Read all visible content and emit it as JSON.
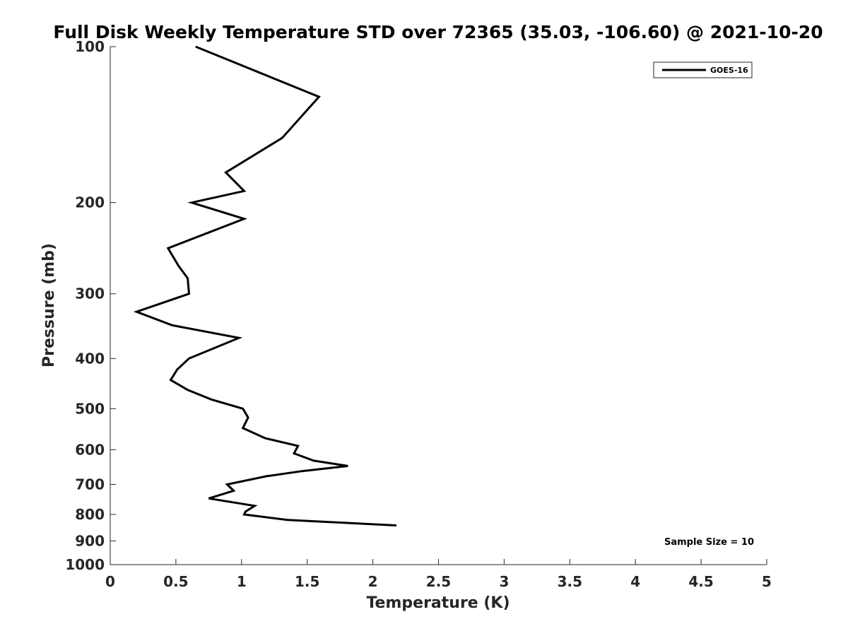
{
  "chart_data": {
    "type": "line",
    "title": "Full Disk Weekly Temperature STD over 72365 (35.03, -106.60) @ 2021-10-20",
    "xlabel": "Temperature (K)",
    "ylabel": "Pressure (mb)",
    "xlim": [
      0,
      5
    ],
    "ylim": [
      1000,
      100
    ],
    "yscale": "log",
    "y_reversed": true,
    "xticks": [
      0,
      0.5,
      1,
      1.5,
      2,
      2.5,
      3,
      3.5,
      4,
      4.5,
      5
    ],
    "xtick_labels": [
      "0",
      "0.5",
      "1",
      "1.5",
      "2",
      "2.5",
      "3",
      "3.5",
      "4",
      "4.5",
      "5"
    ],
    "yticks": [
      100,
      200,
      300,
      400,
      500,
      600,
      700,
      800,
      900,
      1000
    ],
    "ytick_labels": [
      "100",
      "200",
      "300",
      "400",
      "500",
      "600",
      "700",
      "800",
      "900",
      "1000"
    ],
    "grid": false,
    "legend": {
      "position": "top-right",
      "entries": [
        "GOES-16"
      ]
    },
    "annotation": "Sample Size = 10",
    "series": [
      {
        "name": "GOES-16",
        "color": "#000000",
        "points": [
          [
            0.65,
            100
          ],
          [
            1.59,
            125
          ],
          [
            1.31,
            150
          ],
          [
            0.88,
            175
          ],
          [
            1.02,
            190
          ],
          [
            0.62,
            200
          ],
          [
            1.02,
            215
          ],
          [
            0.44,
            245
          ],
          [
            0.52,
            265
          ],
          [
            0.59,
            280
          ],
          [
            0.6,
            300
          ],
          [
            0.2,
            325
          ],
          [
            0.47,
            345
          ],
          [
            0.98,
            365
          ],
          [
            0.6,
            400
          ],
          [
            0.51,
            420
          ],
          [
            0.46,
            440
          ],
          [
            0.59,
            460
          ],
          [
            0.77,
            480
          ],
          [
            1.01,
            500
          ],
          [
            1.05,
            520
          ],
          [
            1.01,
            545
          ],
          [
            1.18,
            570
          ],
          [
            1.43,
            590
          ],
          [
            1.4,
            610
          ],
          [
            1.55,
            630
          ],
          [
            1.81,
            645
          ],
          [
            1.46,
            660
          ],
          [
            1.19,
            675
          ],
          [
            0.89,
            700
          ],
          [
            0.94,
            720
          ],
          [
            0.75,
            745
          ],
          [
            1.1,
            770
          ],
          [
            1.03,
            790
          ],
          [
            1.02,
            800
          ],
          [
            1.35,
            820
          ],
          [
            2.18,
            840
          ]
        ]
      }
    ]
  }
}
